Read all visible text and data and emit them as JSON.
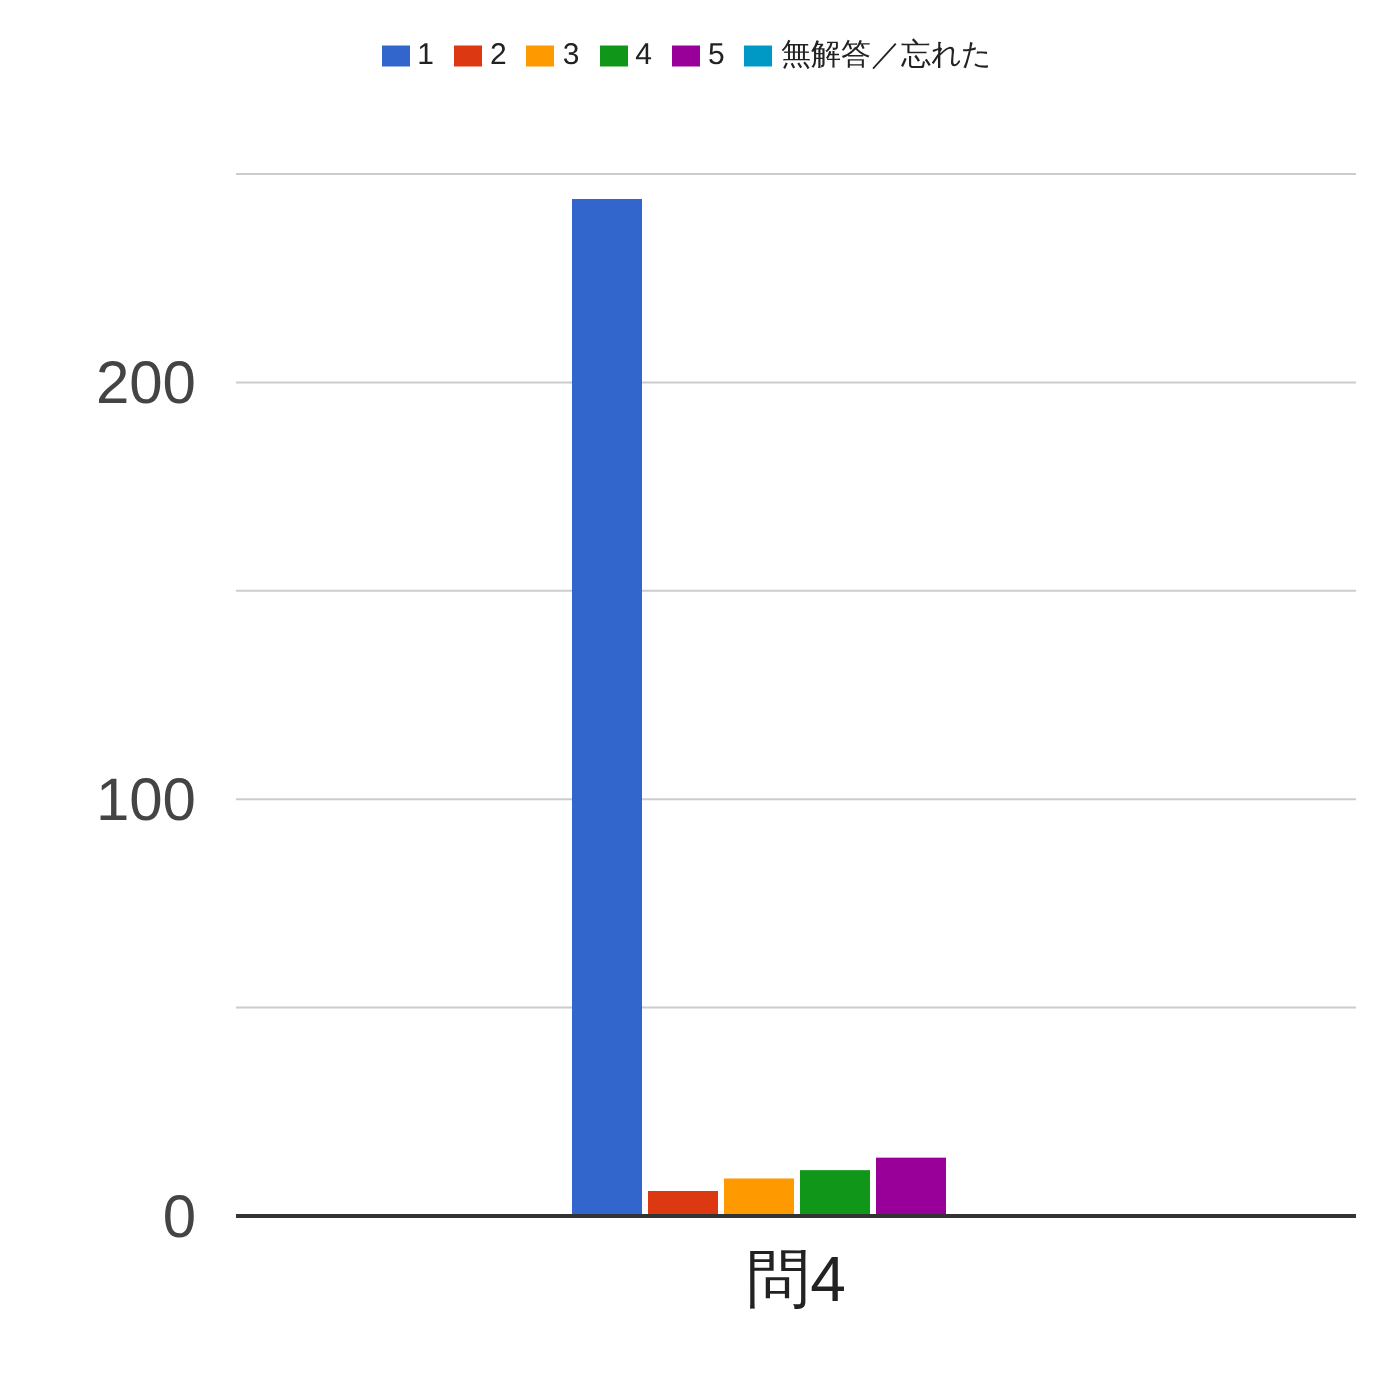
{
  "chart_data": {
    "type": "bar",
    "categories": [
      "問4"
    ],
    "series": [
      {
        "name": "1",
        "color": "#3366cc",
        "values": [
          244
        ]
      },
      {
        "name": "2",
        "color": "#dc3912",
        "values": [
          6
        ]
      },
      {
        "name": "3",
        "color": "#ff9900",
        "values": [
          9
        ]
      },
      {
        "name": "4",
        "color": "#109618",
        "values": [
          11
        ]
      },
      {
        "name": "5",
        "color": "#990099",
        "values": [
          14
        ]
      },
      {
        "name": "無解答／忘れた",
        "color": "#0099c6",
        "values": [
          0
        ]
      }
    ],
    "ylim": [
      0,
      250
    ],
    "yticks": [
      0,
      {
        "value": 50,
        "label": null
      },
      100,
      {
        "value": 150,
        "label": null
      },
      200,
      {
        "value": 250,
        "label": null
      }
    ],
    "grid": "y",
    "legend": "top"
  }
}
